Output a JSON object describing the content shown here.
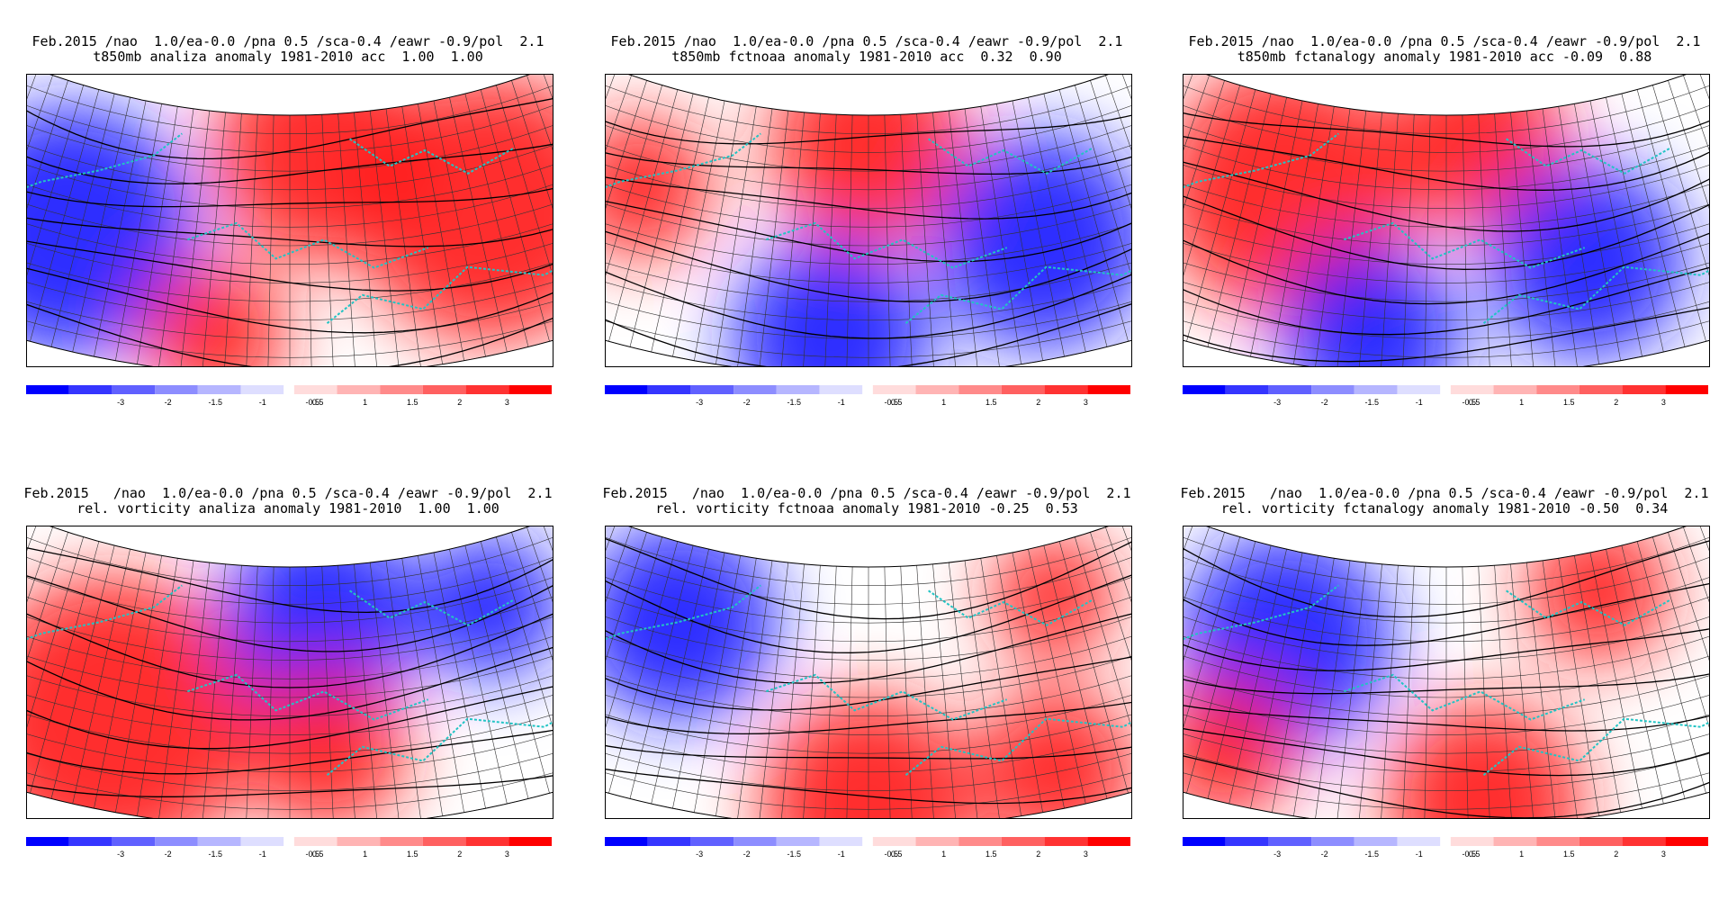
{
  "colorbar": {
    "labels": [
      "-3",
      "-2",
      "-1.5",
      "-1",
      "-0.5",
      "0.5",
      "1",
      "1.5",
      "2",
      "3"
    ],
    "neg_colors": [
      "#0000ff",
      "#3535ff",
      "#6060ff",
      "#8d8dff",
      "#b6b6ff",
      "#dedeff"
    ],
    "pos_colors": [
      "#ffdcdc",
      "#ffb4b4",
      "#ff8a8a",
      "#ff6060",
      "#ff3232",
      "#ff0000"
    ]
  },
  "colors": {
    "coast": "#22c4c4",
    "contour": "#000000",
    "grid": "#333333"
  },
  "panels": [
    {
      "line1": "Feb.2015 /nao  1.0/ea-0.0 /pna 0.5 /sca-0.4 /eawr -0.9/pol  2.1",
      "line2": "t850mb analiza anomaly 1981-2010 acc  1.00  1.00"
    },
    {
      "line1": "Feb.2015 /nao  1.0/ea-0.0 /pna 0.5 /sca-0.4 /eawr -0.9/pol  2.1",
      "line2": "t850mb fctnoaa anomaly 1981-2010 acc  0.32  0.90"
    },
    {
      "line1": "Feb.2015 /nao  1.0/ea-0.0 /pna 0.5 /sca-0.4 /eawr -0.9/pol  2.1",
      "line2": "t850mb fctanalogy anomaly 1981-2010 acc -0.09  0.88"
    },
    {
      "line1": "Feb.2015   /nao  1.0/ea-0.0 /pna 0.5 /sca-0.4 /eawr -0.9/pol  2.1",
      "line2": "rel. vorticity analiza anomaly 1981-2010  1.00  1.00"
    },
    {
      "line1": "Feb.2015   /nao  1.0/ea-0.0 /pna 0.5 /sca-0.4 /eawr -0.9/pol  2.1",
      "line2": "rel. vorticity fctnoaa anomaly 1981-2010 -0.25  0.53"
    },
    {
      "line1": "Feb.2015   /nao  1.0/ea-0.0 /pna 0.5 /sca-0.4 /eawr -0.9/pol  2.1",
      "line2": "rel. vorticity fctanalogy anomaly 1981-2010 -0.50  0.34"
    }
  ]
}
